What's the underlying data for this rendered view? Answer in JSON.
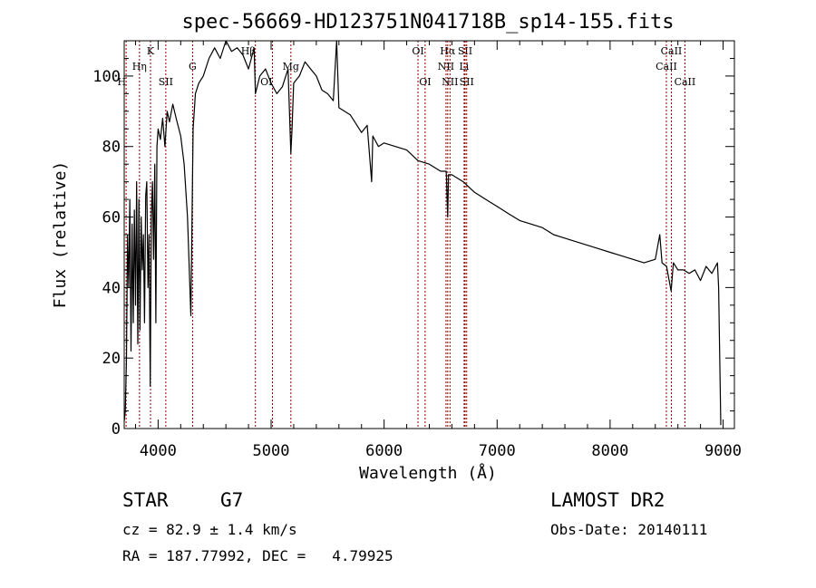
{
  "chart_data": {
    "type": "line",
    "title": "spec-56669-HD123751N041718B_sp14-155.fits",
    "xlabel": "Wavelength (Å)",
    "ylabel": "Flux (relative)",
    "xlim": [
      3700,
      9100
    ],
    "ylim": [
      0,
      110
    ],
    "xticks": [
      4000,
      5000,
      6000,
      7000,
      8000,
      9000
    ],
    "yticks": [
      0,
      20,
      40,
      60,
      80,
      100
    ],
    "grid": false,
    "line_color": "#000000",
    "marker_color": "#8b0000",
    "series": [
      {
        "x": [
          3700,
          3710,
          3720,
          3730,
          3740,
          3750,
          3760,
          3770,
          3780,
          3790,
          3800,
          3810,
          3820,
          3830,
          3840,
          3850,
          3860,
          3870,
          3880,
          3890,
          3900,
          3910,
          3920,
          3930,
          3940,
          3950,
          3960,
          3970,
          3980,
          3990,
          4000,
          4020,
          4040,
          4060,
          4080,
          4100,
          4130,
          4160,
          4200,
          4230,
          4260,
          4290,
          4310,
          4330,
          4360,
          4400,
          4450,
          4500,
          4550,
          4600,
          4650,
          4700,
          4750,
          4800,
          4850,
          4861,
          4900,
          4950,
          5000,
          5050,
          5100,
          5150,
          5175,
          5185,
          5200,
          5250,
          5300,
          5350,
          5400,
          5450,
          5500,
          5550,
          5580,
          5600,
          5650,
          5700,
          5800,
          5850,
          5890,
          5900,
          5950,
          6000,
          6100,
          6200,
          6300,
          6400,
          6500,
          6550,
          6563,
          6570,
          6600,
          6700,
          6800,
          6900,
          7000,
          7100,
          7200,
          7300,
          7400,
          7500,
          7600,
          7700,
          7800,
          7900,
          8000,
          8100,
          8200,
          8300,
          8400,
          8440,
          8460,
          8500,
          8540,
          8560,
          8600,
          8650,
          8700,
          8750,
          8800,
          8850,
          8900,
          8950,
          8960,
          8980
        ],
        "y": [
          2,
          5,
          20,
          55,
          40,
          65,
          22,
          58,
          30,
          62,
          35,
          70,
          24,
          65,
          28,
          60,
          45,
          55,
          30,
          66,
          70,
          40,
          55,
          12,
          60,
          70,
          48,
          75,
          30,
          80,
          85,
          82,
          88,
          80,
          90,
          87,
          92,
          88,
          83,
          75,
          60,
          32,
          85,
          95,
          98,
          100,
          105,
          108,
          105,
          110,
          107,
          108,
          106,
          102,
          108,
          95,
          100,
          102,
          98,
          95,
          97,
          102,
          78,
          85,
          98,
          100,
          104,
          102,
          100,
          96,
          95,
          93,
          110,
          91,
          90,
          89,
          84,
          86,
          70,
          83,
          80,
          81,
          80,
          79,
          76,
          75,
          73,
          73,
          60,
          72,
          72,
          70,
          67,
          65,
          63,
          61,
          59,
          58,
          57,
          55,
          54,
          53,
          52,
          51,
          50,
          49,
          48,
          47,
          48,
          55,
          47,
          46,
          39,
          47,
          45,
          45,
          44,
          45,
          42,
          46,
          44,
          47,
          40,
          1
        ]
      }
    ],
    "line_markers": [
      {
        "label": "Hη",
        "x": 3835,
        "row": 1
      },
      {
        "label": "H",
        "x": 3717,
        "row": 2,
        "clip": true
      },
      {
        "label": "K",
        "x": 3933,
        "row": 0
      },
      {
        "label": "SII",
        "x": 4068,
        "row": 2
      },
      {
        "label": "G",
        "x": 4305,
        "row": 1
      },
      {
        "label": "Hβ",
        "x": 4861,
        "row": 0,
        "clip": true
      },
      {
        "label": "Mg",
        "x": 5175,
        "row": 1
      },
      {
        "label": "OI",
        "x": 5012,
        "row": 2,
        "clip": true
      },
      {
        "label": "OI",
        "x": 6300,
        "row": 0
      },
      {
        "label": "OI",
        "x": 6363,
        "row": 2
      },
      {
        "label": "Hα",
        "x": 6563,
        "row": 0
      },
      {
        "label": "NII",
        "x": 6548,
        "row": 1
      },
      {
        "label": "NII",
        "x": 6583,
        "row": 2
      },
      {
        "label": "SII",
        "x": 6717,
        "row": 0
      },
      {
        "label": "Li",
        "x": 6708,
        "row": 1
      },
      {
        "label": "SII",
        "x": 6731,
        "row": 2
      },
      {
        "label": "CaII",
        "x": 8542,
        "row": 0
      },
      {
        "label": "CaII",
        "x": 8498,
        "row": 1
      },
      {
        "label": "CaII",
        "x": 8662,
        "row": 2
      }
    ]
  },
  "info": {
    "class": "STAR",
    "subclass": "G7",
    "survey": "LAMOST DR2",
    "cz": "cz = 82.9 ± 1.4 km/s",
    "obs_date": "Obs-Date: 20140111",
    "radec": "RA = 187.77992, DEC =   4.79925"
  }
}
